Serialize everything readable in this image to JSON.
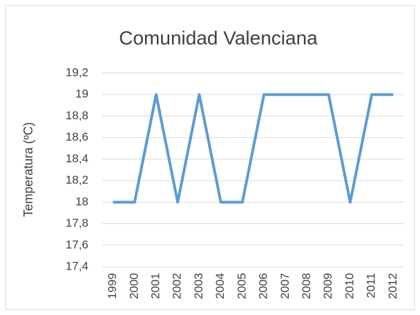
{
  "chart_data": {
    "type": "line",
    "title": "Comunidad Valenciana",
    "ylabel": "Temperatura (ºC)",
    "categories": [
      "1999",
      "2000",
      "2001",
      "2002",
      "2003",
      "2004",
      "2005",
      "2006",
      "2007",
      "2008",
      "2009",
      "2010",
      "2011",
      "2012"
    ],
    "values": [
      18,
      18,
      19,
      18,
      19,
      18,
      18,
      19,
      19,
      19,
      19,
      18,
      19,
      19
    ],
    "color": "#5b9bd5",
    "ylim": [
      17.4,
      19.2
    ],
    "yticks": [
      {
        "value": 17.4,
        "label": "17,4"
      },
      {
        "value": 17.6,
        "label": "17,6"
      },
      {
        "value": 17.8,
        "label": "17,8"
      },
      18,
      {
        "value": 18.2,
        "label": "18,2"
      },
      {
        "value": 18.4,
        "label": "18,4"
      },
      {
        "value": 18.6,
        "label": "18,6"
      },
      {
        "value": 18.8,
        "label": "18,8"
      },
      19,
      {
        "value": 19.2,
        "label": "19,2"
      }
    ],
    "grid": true
  }
}
